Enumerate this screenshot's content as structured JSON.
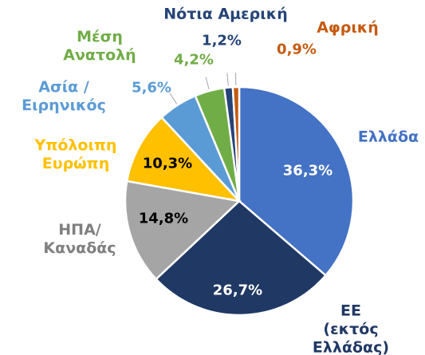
{
  "chart_data": {
    "type": "pie",
    "categories": [
      "Ελλάδα",
      "ΕΕ (εκτός\nΕλλάδας)",
      "ΗΠΑ/\nΚαναδάς",
      "Υπόλοιπη\nΕυρώπη",
      "Ασία /\nΕιρηνικός",
      "Μέση\nΑνατολή",
      "Νότια Αμερική",
      "Αφρική"
    ],
    "values": [
      36.3,
      26.7,
      14.8,
      10.3,
      5.6,
      4.2,
      1.2,
      0.9
    ],
    "value_labels": [
      "36,3%",
      "26,7%",
      "14,8%",
      "10,3%",
      "5,6%",
      "4,2%",
      "1,2%",
      "0,9%"
    ],
    "colors": [
      "#4472c4",
      "#203864",
      "#a5a5a5",
      "#ffc000",
      "#5b9bd5",
      "#70ad47",
      "#264478",
      "#c55a11"
    ]
  }
}
